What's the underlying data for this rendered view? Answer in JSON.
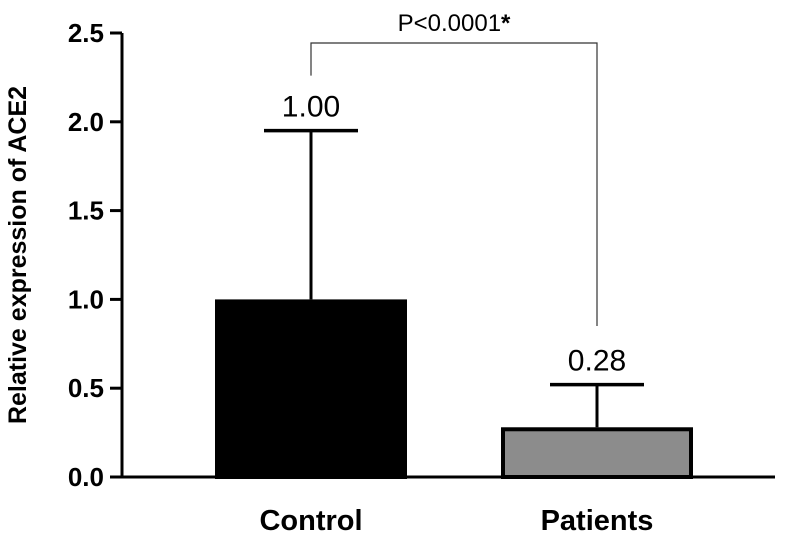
{
  "chart_data": {
    "type": "bar",
    "categories": [
      "Control",
      "Patients"
    ],
    "values": [
      1.0,
      0.28
    ],
    "error_upper": [
      1.95,
      0.52
    ],
    "data_labels": [
      "1.00",
      "0.28"
    ],
    "bar_colors": [
      "#000000",
      "#8c8c8c"
    ],
    "ylabel": "Relative expression of ACE2",
    "ylim": [
      0,
      2.5
    ],
    "yticks": [
      0,
      0.5,
      1.0,
      1.5,
      2.0,
      2.5
    ],
    "ytick_labels": [
      "0.0",
      "0.5",
      "1.0",
      "1.5",
      "2.0",
      "2.5"
    ],
    "grid": false,
    "significance": {
      "text": "P<0.0001",
      "marker": "*",
      "bracket_y": 2.5
    }
  }
}
